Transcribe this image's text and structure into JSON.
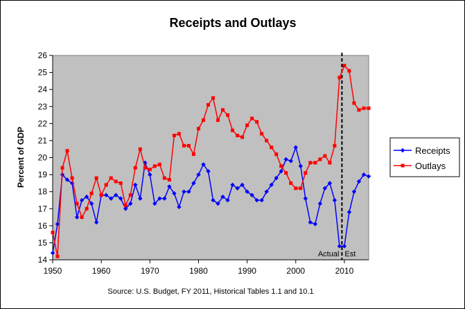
{
  "chart_data": {
    "type": "line",
    "title": "Receipts and Outlays",
    "xlabel": "",
    "ylabel": "Percent of GDP",
    "source": "Source: U.S. Budget, FY 2011, Historical Tables 1.1 and 10.1",
    "xlim": [
      1950,
      2015
    ],
    "ylim": [
      14,
      26
    ],
    "xticks": [
      1950,
      1960,
      1970,
      1980,
      1990,
      2000,
      2010
    ],
    "yticks": [
      14,
      15,
      16,
      17,
      18,
      19,
      20,
      21,
      22,
      23,
      24,
      25,
      26
    ],
    "grid": false,
    "legend_position": "right",
    "annotations": {
      "actual": "Actual",
      "est": "Est",
      "divider_year": 2009.5
    },
    "x": [
      1950,
      1951,
      1952,
      1953,
      1954,
      1955,
      1956,
      1957,
      1958,
      1959,
      1960,
      1961,
      1962,
      1963,
      1964,
      1965,
      1966,
      1967,
      1968,
      1969,
      1970,
      1971,
      1972,
      1973,
      1974,
      1975,
      1976,
      1977,
      1978,
      1979,
      1980,
      1981,
      1982,
      1983,
      1984,
      1985,
      1986,
      1987,
      1988,
      1989,
      1990,
      1991,
      1992,
      1993,
      1994,
      1995,
      1996,
      1997,
      1998,
      1999,
      2000,
      2001,
      2002,
      2003,
      2004,
      2005,
      2006,
      2007,
      2008,
      2009,
      2010,
      2011,
      2012,
      2013,
      2014,
      2015
    ],
    "series": [
      {
        "name": "Receipts",
        "color": "#0000ff",
        "marker": "diamond",
        "values": [
          14.4,
          16.1,
          19.0,
          18.7,
          18.5,
          16.5,
          17.5,
          17.7,
          17.3,
          16.2,
          17.8,
          17.8,
          17.6,
          17.8,
          17.6,
          17.0,
          17.3,
          18.4,
          17.6,
          19.7,
          19.0,
          17.3,
          17.6,
          17.6,
          18.3,
          17.9,
          17.1,
          18.0,
          18.0,
          18.5,
          19.0,
          19.6,
          19.2,
          17.5,
          17.3,
          17.7,
          17.5,
          18.4,
          18.2,
          18.4,
          18.0,
          17.8,
          17.5,
          17.5,
          18.0,
          18.4,
          18.8,
          19.2,
          19.9,
          19.8,
          20.6,
          19.5,
          17.6,
          16.2,
          16.1,
          17.3,
          18.2,
          18.5,
          17.5,
          14.8,
          14.8,
          16.8,
          18.0,
          18.6,
          19.0,
          18.9
        ]
      },
      {
        "name": "Outlays",
        "color": "#ff0000",
        "marker": "square",
        "values": [
          15.6,
          14.2,
          19.4,
          20.4,
          18.8,
          17.3,
          16.5,
          17.0,
          17.9,
          18.8,
          17.8,
          18.4,
          18.8,
          18.6,
          18.5,
          17.2,
          17.8,
          19.4,
          20.5,
          19.4,
          19.3,
          19.5,
          19.6,
          18.8,
          18.7,
          21.3,
          21.4,
          20.7,
          20.7,
          20.2,
          21.7,
          22.2,
          23.1,
          23.5,
          22.2,
          22.8,
          22.5,
          21.6,
          21.3,
          21.2,
          21.9,
          22.3,
          22.1,
          21.4,
          21.0,
          20.6,
          20.2,
          19.5,
          19.1,
          18.5,
          18.2,
          18.2,
          19.1,
          19.7,
          19.7,
          19.9,
          20.1,
          19.7,
          20.7,
          24.7,
          25.4,
          25.1,
          23.2,
          22.8,
          22.9,
          22.9
        ]
      }
    ]
  }
}
